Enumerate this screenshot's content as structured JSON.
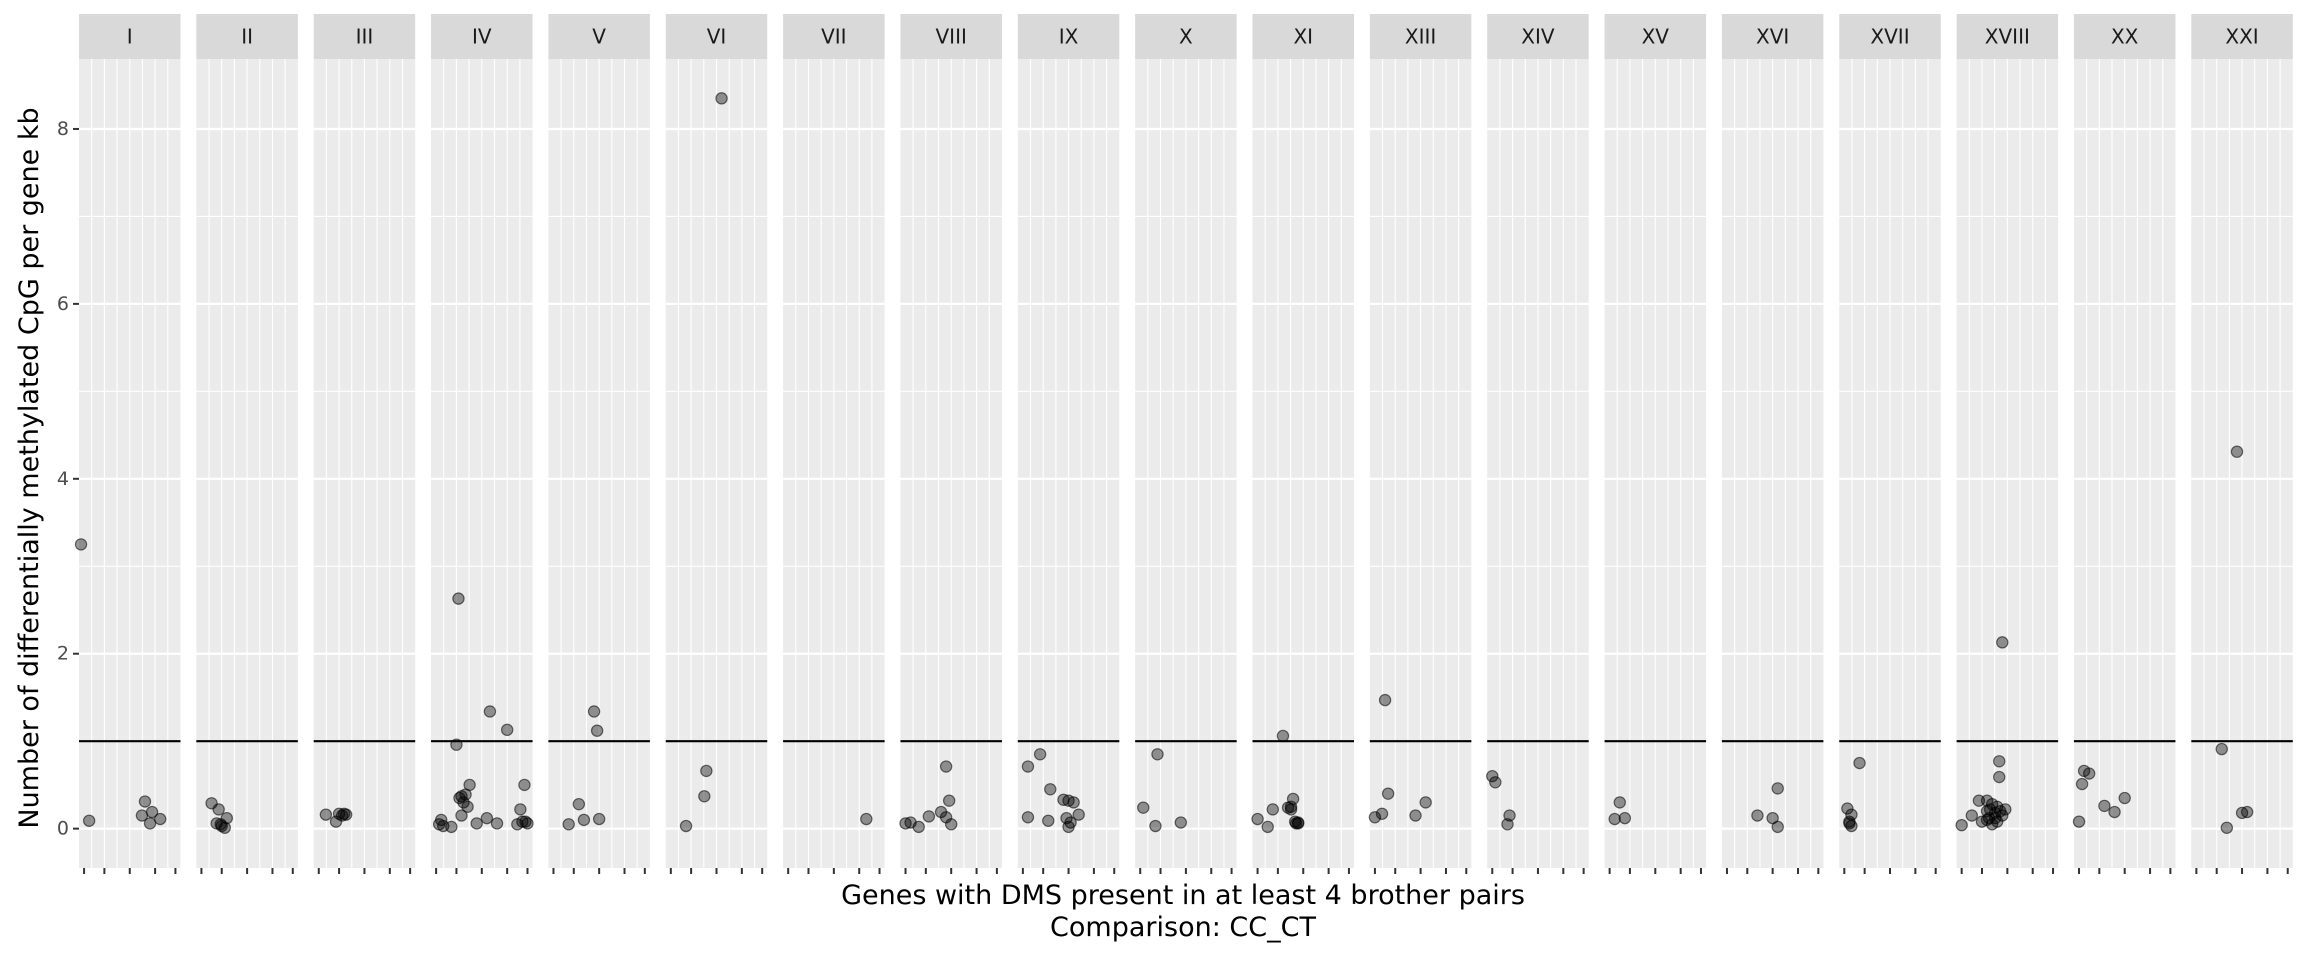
{
  "chart_data": {
    "type": "scatter",
    "facet": "chromosome",
    "xlabel": "Genes with DMS present in at least 4 brother pairs",
    "xlabel_line2": "Comparison: CC_CT",
    "ylabel": "Number of differentially methylated CpG per gene kb",
    "ylim": [
      -0.45,
      8.8
    ],
    "yticks": [
      0,
      2,
      4,
      6,
      8
    ],
    "xlim": [
      0,
      1
    ],
    "reference_line_y": 1,
    "grid": true,
    "legend": "none",
    "point_color": "#000000",
    "point_alpha": 0.4,
    "panels": [
      {
        "label": "I",
        "points": [
          [
            0.02,
            3.25
          ],
          [
            0.1,
            0.09
          ],
          [
            0.65,
            0.31
          ],
          [
            0.62,
            0.15
          ],
          [
            0.72,
            0.19
          ],
          [
            0.7,
            0.06
          ],
          [
            0.8,
            0.11
          ]
        ]
      },
      {
        "label": "II",
        "points": [
          [
            0.15,
            0.29
          ],
          [
            0.22,
            0.22
          ],
          [
            0.3,
            0.12
          ],
          [
            0.2,
            0.06
          ],
          [
            0.25,
            0.03
          ],
          [
            0.28,
            0.01
          ],
          [
            0.24,
            0.05
          ]
        ]
      },
      {
        "label": "III",
        "points": [
          [
            0.12,
            0.16
          ],
          [
            0.22,
            0.08
          ],
          [
            0.25,
            0.17
          ],
          [
            0.28,
            0.15
          ],
          [
            0.3,
            0.17
          ],
          [
            0.32,
            0.16
          ]
        ]
      },
      {
        "label": "IV",
        "points": [
          [
            0.08,
            0.05
          ],
          [
            0.1,
            0.1
          ],
          [
            0.12,
            0.03
          ],
          [
            0.2,
            0.02
          ],
          [
            0.25,
            0.96
          ],
          [
            0.27,
            2.63
          ],
          [
            0.28,
            0.35
          ],
          [
            0.3,
            0.37
          ],
          [
            0.32,
            0.3
          ],
          [
            0.34,
            0.39
          ],
          [
            0.36,
            0.25
          ],
          [
            0.38,
            0.5
          ],
          [
            0.3,
            0.15
          ],
          [
            0.45,
            0.06
          ],
          [
            0.55,
            0.12
          ],
          [
            0.58,
            1.34
          ],
          [
            0.65,
            0.06
          ],
          [
            0.75,
            1.13
          ],
          [
            0.85,
            0.05
          ],
          [
            0.88,
            0.22
          ],
          [
            0.9,
            0.08
          ],
          [
            0.92,
            0.5
          ],
          [
            0.95,
            0.06
          ],
          [
            0.93,
            0.08
          ]
        ]
      },
      {
        "label": "V",
        "points": [
          [
            0.2,
            0.05
          ],
          [
            0.3,
            0.28
          ],
          [
            0.35,
            0.1
          ],
          [
            0.45,
            1.34
          ],
          [
            0.48,
            1.12
          ],
          [
            0.5,
            0.11
          ]
        ]
      },
      {
        "label": "VI",
        "points": [
          [
            0.2,
            0.03
          ],
          [
            0.38,
            0.37
          ],
          [
            0.4,
            0.66
          ],
          [
            0.55,
            8.35
          ]
        ]
      },
      {
        "label": "VII",
        "points": [
          [
            0.82,
            0.11
          ]
        ]
      },
      {
        "label": "VIII",
        "points": [
          [
            0.05,
            0.06
          ],
          [
            0.1,
            0.07
          ],
          [
            0.18,
            0.02
          ],
          [
            0.28,
            0.14
          ],
          [
            0.4,
            0.19
          ],
          [
            0.45,
            0.71
          ],
          [
            0.48,
            0.32
          ],
          [
            0.45,
            0.13
          ],
          [
            0.5,
            0.05
          ]
        ]
      },
      {
        "label": "IX",
        "points": [
          [
            0.1,
            0.71
          ],
          [
            0.1,
            0.13
          ],
          [
            0.22,
            0.85
          ],
          [
            0.32,
            0.45
          ],
          [
            0.3,
            0.09
          ],
          [
            0.45,
            0.33
          ],
          [
            0.5,
            0.32
          ],
          [
            0.55,
            0.3
          ],
          [
            0.5,
            0.02
          ],
          [
            0.52,
            0.07
          ],
          [
            0.6,
            0.16
          ],
          [
            0.48,
            0.12
          ]
        ]
      },
      {
        "label": "X",
        "points": [
          [
            0.08,
            0.24
          ],
          [
            0.2,
            0.03
          ],
          [
            0.22,
            0.85
          ],
          [
            0.45,
            0.07
          ]
        ]
      },
      {
        "label": "XI",
        "points": [
          [
            0.05,
            0.11
          ],
          [
            0.15,
            0.02
          ],
          [
            0.2,
            0.22
          ],
          [
            0.3,
            1.06
          ],
          [
            0.35,
            0.24
          ],
          [
            0.4,
            0.34
          ],
          [
            0.38,
            0.22
          ],
          [
            0.45,
            0.07
          ],
          [
            0.42,
            0.08
          ],
          [
            0.45,
            0.06
          ],
          [
            0.38,
            0.25
          ],
          [
            0.43,
            0.06
          ]
        ]
      },
      {
        "label": "XIII",
        "points": [
          [
            0.05,
            0.13
          ],
          [
            0.12,
            0.17
          ],
          [
            0.15,
            1.47
          ],
          [
            0.18,
            0.4
          ],
          [
            0.45,
            0.15
          ],
          [
            0.55,
            0.3
          ]
        ]
      },
      {
        "label": "XIV",
        "points": [
          [
            0.05,
            0.6
          ],
          [
            0.08,
            0.53
          ],
          [
            0.2,
            0.05
          ],
          [
            0.22,
            0.15
          ]
        ]
      },
      {
        "label": "XV",
        "points": [
          [
            0.1,
            0.11
          ],
          [
            0.15,
            0.3
          ],
          [
            0.2,
            0.12
          ]
        ]
      },
      {
        "label": "XVI",
        "points": [
          [
            0.35,
            0.15
          ],
          [
            0.5,
            0.12
          ],
          [
            0.55,
            0.46
          ],
          [
            0.55,
            0.02
          ]
        ]
      },
      {
        "label": "XVII",
        "points": [
          [
            0.08,
            0.23
          ],
          [
            0.12,
            0.16
          ],
          [
            0.1,
            0.08
          ],
          [
            0.12,
            0.03
          ],
          [
            0.1,
            0.06
          ],
          [
            0.2,
            0.75
          ]
        ]
      },
      {
        "label": "XVIII",
        "points": [
          [
            0.05,
            0.04
          ],
          [
            0.15,
            0.15
          ],
          [
            0.22,
            0.32
          ],
          [
            0.25,
            0.08
          ],
          [
            0.3,
            0.2
          ],
          [
            0.3,
            0.32
          ],
          [
            0.32,
            0.12
          ],
          [
            0.35,
            0.05
          ],
          [
            0.38,
            0.18
          ],
          [
            0.4,
            0.25
          ],
          [
            0.42,
            0.77
          ],
          [
            0.42,
            0.59
          ],
          [
            0.45,
            2.13
          ],
          [
            0.43,
            0.2
          ],
          [
            0.45,
            0.15
          ],
          [
            0.48,
            0.22
          ],
          [
            0.4,
            0.08
          ],
          [
            0.38,
            0.12
          ],
          [
            0.35,
            0.28
          ],
          [
            0.3,
            0.1
          ],
          [
            0.33,
            0.22
          ]
        ]
      },
      {
        "label": "XX",
        "points": [
          [
            0.05,
            0.08
          ],
          [
            0.08,
            0.51
          ],
          [
            0.1,
            0.66
          ],
          [
            0.15,
            0.63
          ],
          [
            0.3,
            0.26
          ],
          [
            0.4,
            0.19
          ],
          [
            0.5,
            0.35
          ]
        ]
      },
      {
        "label": "XXI",
        "points": [
          [
            0.3,
            0.91
          ],
          [
            0.35,
            0.01
          ],
          [
            0.45,
            4.31
          ],
          [
            0.5,
            0.18
          ],
          [
            0.55,
            0.19
          ]
        ]
      }
    ]
  }
}
